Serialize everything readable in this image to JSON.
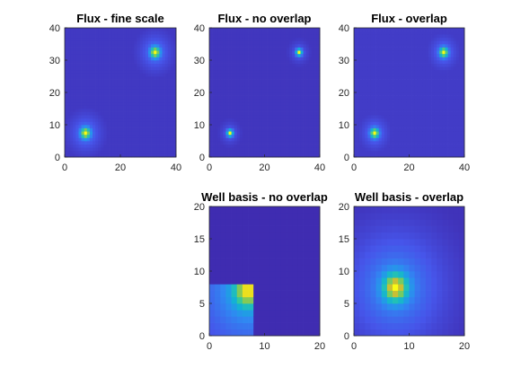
{
  "figure": {
    "background": "#ffffff"
  },
  "colormap": {
    "name": "parula",
    "low": "#3e26a8",
    "high": "#f9fb14"
  },
  "chart_data": [
    {
      "type": "heatmap",
      "title": "Flux - fine scale",
      "xlim": [
        0,
        40
      ],
      "ylim": [
        0,
        40
      ],
      "xticks": [
        0,
        20,
        40
      ],
      "yticks": [
        0,
        10,
        20,
        30,
        40
      ],
      "grid_cells": [
        40,
        40
      ],
      "peaks": [
        {
          "x": 7.5,
          "y": 7.5,
          "level": 1.0,
          "spread": 1.6,
          "halo": 0.3
        },
        {
          "x": 32.5,
          "y": 32.5,
          "level": 1.0,
          "spread": 1.6,
          "halo": 0.3
        }
      ],
      "background_level": 0.06
    },
    {
      "type": "heatmap",
      "title": "Flux - no overlap",
      "xlim": [
        0,
        40
      ],
      "ylim": [
        0,
        40
      ],
      "xticks": [
        0,
        20,
        40
      ],
      "yticks": [
        0,
        10,
        20,
        30,
        40
      ],
      "grid_cells": [
        40,
        40
      ],
      "peaks": [
        {
          "x": 7.5,
          "y": 7.5,
          "level": 1.0,
          "spread": 1.0,
          "halo": 0.22
        },
        {
          "x": 32.5,
          "y": 32.5,
          "level": 1.0,
          "spread": 1.0,
          "halo": 0.22
        }
      ],
      "background_level": 0.05
    },
    {
      "type": "heatmap",
      "title": "Flux - overlap",
      "xlim": [
        0,
        40
      ],
      "ylim": [
        0,
        40
      ],
      "xticks": [
        0,
        20,
        40
      ],
      "yticks": [
        0,
        10,
        20,
        30,
        40
      ],
      "grid_cells": [
        40,
        40
      ],
      "peaks": [
        {
          "x": 7.5,
          "y": 7.5,
          "level": 1.0,
          "spread": 1.4,
          "halo": 0.28
        },
        {
          "x": 32.5,
          "y": 32.5,
          "level": 1.0,
          "spread": 1.4,
          "halo": 0.28
        }
      ],
      "background_level": 0.07
    },
    {
      "type": "heatmap",
      "title": "Well basis - no overlap",
      "xlim": [
        0,
        20
      ],
      "ylim": [
        0,
        20
      ],
      "xticks": [
        0,
        10,
        20
      ],
      "yticks": [
        0,
        5,
        10,
        15,
        20
      ],
      "grid_cells": [
        20,
        20
      ],
      "support": {
        "x": [
          0,
          8
        ],
        "y": [
          0,
          8
        ]
      },
      "peaks": [
        {
          "x": 7,
          "y": 7,
          "level": 1.0,
          "spread": 2.2,
          "halo": 0.55
        }
      ],
      "background_level": 0.03
    },
    {
      "type": "heatmap",
      "title": "Well basis - overlap",
      "xlim": [
        0,
        20
      ],
      "ylim": [
        0,
        20
      ],
      "xticks": [
        0,
        10,
        20
      ],
      "yticks": [
        0,
        5,
        10,
        15,
        20
      ],
      "grid_cells": [
        20,
        20
      ],
      "peaks": [
        {
          "x": 7.5,
          "y": 7.5,
          "level": 1.0,
          "spread": 2.0,
          "halo": 0.45
        }
      ],
      "background_level": 0.04
    }
  ]
}
